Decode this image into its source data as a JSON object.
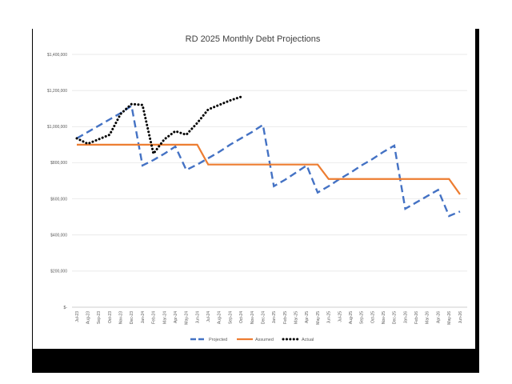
{
  "chart_data": {
    "type": "line",
    "title": "RD 2025 Monthly Debt Projections",
    "xlabel": "",
    "ylabel": "",
    "ylim": [
      0,
      1400000
    ],
    "yticks": [
      {
        "value": 0,
        "label": "$-"
      },
      {
        "value": 200000,
        "label": "$200,000"
      },
      {
        "value": 400000,
        "label": "$400,000"
      },
      {
        "value": 600000,
        "label": "$600,000"
      },
      {
        "value": 800000,
        "label": "$800,000"
      },
      {
        "value": 1000000,
        "label": "$1,000,000"
      },
      {
        "value": 1200000,
        "label": "$1,200,000"
      },
      {
        "value": 1400000,
        "label": "$1,400,000"
      }
    ],
    "grid": true,
    "legend_position": "bottom",
    "categories": [
      "Jul-23",
      "Aug-23",
      "Sep-23",
      "Oct-23",
      "Nov-23",
      "Dec-23",
      "Jan-24",
      "Feb-24",
      "Mar-24",
      "Apr-24",
      "May-24",
      "Jun-24",
      "Jul-24",
      "Aug-24",
      "Sep-24",
      "Oct-24",
      "Nov-24",
      "Dec-24",
      "Jan-25",
      "Feb-25",
      "Mar-25",
      "Apr-25",
      "May-25",
      "Jun-25",
      "Jul-25",
      "Aug-25",
      "Sep-25",
      "Oct-25",
      "Nov-25",
      "Dec-25",
      "Jan-26",
      "Feb-26",
      "Mar-26",
      "Apr-26",
      "May-26",
      "Jun-26"
    ],
    "series": [
      {
        "name": "Projected",
        "color": "#4472C4",
        "style": "dashed",
        "values": [
          935000,
          970000,
          1005000,
          1040000,
          1075000,
          1115000,
          785000,
          815000,
          850000,
          890000,
          760000,
          790000,
          825000,
          860000,
          900000,
          935000,
          970000,
          1010000,
          670000,
          705000,
          745000,
          785000,
          635000,
          670000,
          710000,
          745000,
          785000,
          820000,
          860000,
          895000,
          545000,
          580000,
          615000,
          650000,
          505000,
          530000
        ]
      },
      {
        "name": "Assumed",
        "color": "#ED7D31",
        "style": "solid",
        "values": [
          900000,
          900000,
          900000,
          900000,
          900000,
          900000,
          900000,
          900000,
          900000,
          900000,
          900000,
          900000,
          790000,
          790000,
          790000,
          790000,
          790000,
          790000,
          790000,
          790000,
          790000,
          790000,
          790000,
          710000,
          710000,
          710000,
          710000,
          710000,
          710000,
          710000,
          710000,
          710000,
          710000,
          710000,
          710000,
          625000
        ]
      },
      {
        "name": "Actual",
        "color": "#000000",
        "style": "dotted",
        "values": [
          935000,
          905000,
          930000,
          955000,
          1070000,
          1125000,
          1120000,
          850000,
          930000,
          975000,
          955000,
          1020000,
          1095000,
          1120000,
          1145000,
          1165000,
          null,
          null,
          null,
          null,
          null,
          null,
          null,
          null,
          null,
          null,
          null,
          null,
          null,
          null,
          null,
          null,
          null,
          null,
          null,
          null
        ]
      }
    ]
  }
}
